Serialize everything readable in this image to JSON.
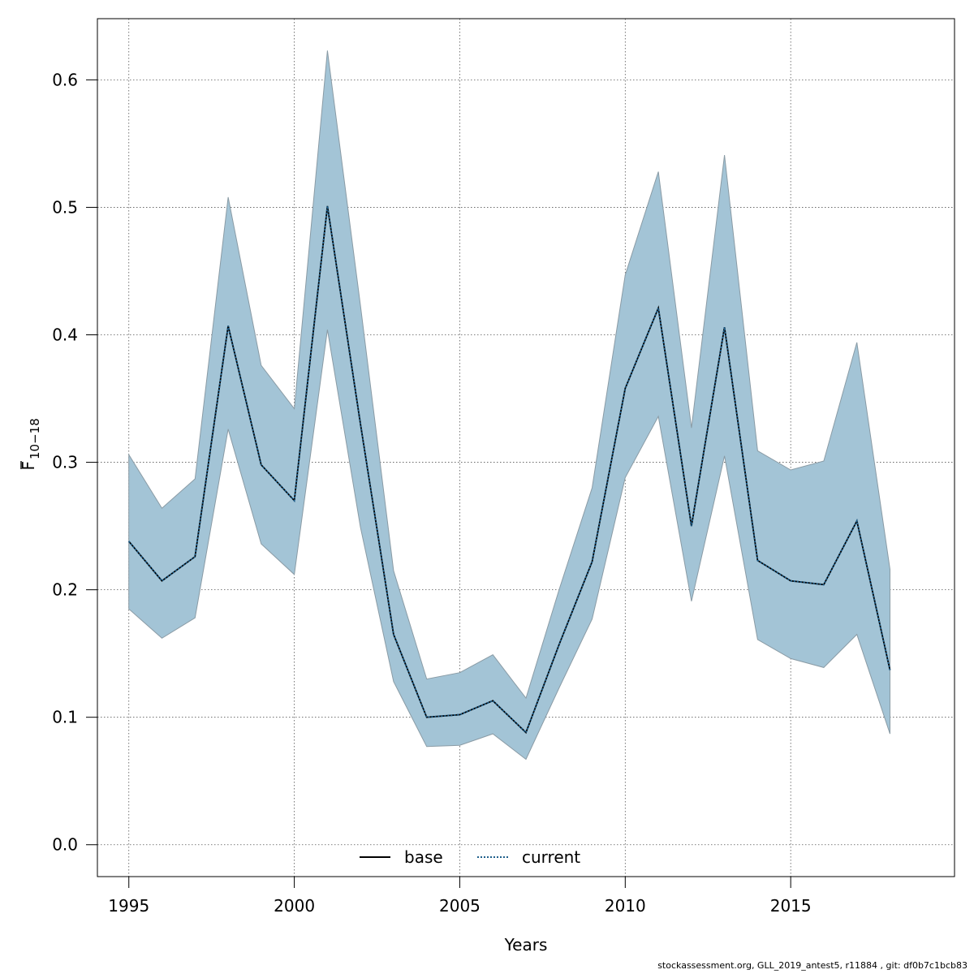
{
  "chart_data": {
    "type": "line",
    "title": "",
    "xlabel": "Years",
    "ylabel": {
      "main": "F",
      "subscript": "10−18",
      "overbar": true
    },
    "x": [
      1995,
      1996,
      1997,
      1998,
      1999,
      2000,
      2001,
      2002,
      2003,
      2004,
      2005,
      2006,
      2007,
      2008,
      2009,
      2010,
      2011,
      2012,
      2013,
      2014,
      2015,
      2016,
      2017,
      2018
    ],
    "xlim": [
      1994.05,
      2019.95
    ],
    "ylim": [
      -0.025,
      0.648
    ],
    "xticks": [
      1995,
      2000,
      2005,
      2010,
      2015
    ],
    "yticks": [
      0.0,
      0.1,
      0.2,
      0.3,
      0.4,
      0.5,
      0.6
    ],
    "ytick_labels": [
      "0.0",
      "0.1",
      "0.2",
      "0.3",
      "0.4",
      "0.5",
      "0.6"
    ],
    "grid": true,
    "series": [
      {
        "name": "base",
        "style": "solid",
        "color": "#000000",
        "values": [
          0.238,
          0.207,
          0.226,
          0.407,
          0.298,
          0.27,
          0.501,
          0.33,
          0.165,
          0.1,
          0.102,
          0.113,
          0.088,
          0.157,
          0.222,
          0.358,
          0.421,
          0.25,
          0.406,
          0.223,
          0.207,
          0.204,
          0.254,
          0.137
        ]
      },
      {
        "name": "current",
        "style": "dotted",
        "color": "#1f5f8b",
        "values": [
          0.238,
          0.207,
          0.226,
          0.407,
          0.298,
          0.27,
          0.501,
          0.33,
          0.165,
          0.1,
          0.102,
          0.113,
          0.088,
          0.157,
          0.222,
          0.358,
          0.421,
          0.25,
          0.406,
          0.223,
          0.207,
          0.204,
          0.254,
          0.137
        ]
      }
    ],
    "band": {
      "lower": [
        0.185,
        0.162,
        0.178,
        0.326,
        0.236,
        0.212,
        0.404,
        0.249,
        0.128,
        0.077,
        0.078,
        0.087,
        0.067,
        0.123,
        0.177,
        0.288,
        0.336,
        0.191,
        0.305,
        0.161,
        0.146,
        0.139,
        0.165,
        0.087
      ],
      "upper": [
        0.306,
        0.264,
        0.287,
        0.508,
        0.376,
        0.342,
        0.623,
        0.423,
        0.215,
        0.13,
        0.135,
        0.149,
        0.115,
        0.2,
        0.28,
        0.447,
        0.528,
        0.327,
        0.541,
        0.309,
        0.294,
        0.301,
        0.394,
        0.216
      ],
      "fill": "#a3c4d6",
      "stroke": "#8a9ba5"
    },
    "legend": {
      "position": "bottom-center",
      "entries": [
        {
          "label": "base",
          "style": "solid",
          "color": "#000000"
        },
        {
          "label": "current",
          "style": "dotted",
          "color": "#1f5f8b"
        }
      ]
    }
  },
  "footer": "stockassessment.org, GLL_2019_antest5, r11884 , git: df0b7c1bcb83"
}
